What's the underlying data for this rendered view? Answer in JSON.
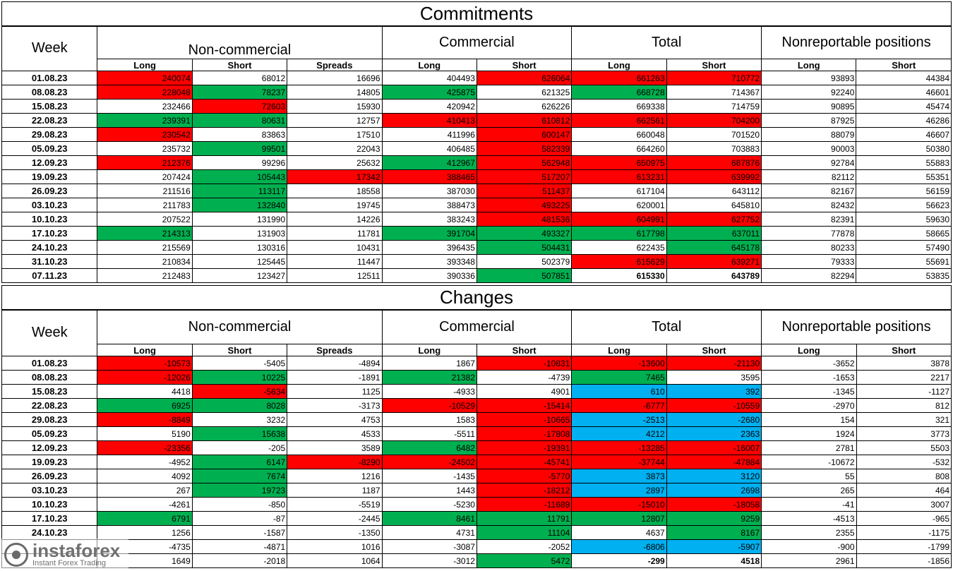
{
  "commitments": {
    "title": "Commitments",
    "week_header": "Week",
    "groups": [
      "Non-commercial",
      "Commercial",
      "Total",
      "Nonreportable positions"
    ],
    "sub_headers": [
      "Long",
      "Short",
      "Spreads",
      "Long",
      "Short",
      "Long",
      "Short",
      "Long",
      "Short"
    ],
    "rows": [
      {
        "week": "01.08.23",
        "values": [
          "240074",
          "68012",
          "16696",
          "404493",
          "626064",
          "661263",
          "710772",
          "93893",
          "44384"
        ],
        "colors": [
          "red",
          "",
          "",
          "",
          "red",
          "red",
          "red",
          "",
          ""
        ]
      },
      {
        "week": "08.08.23",
        "values": [
          "228048",
          "78237",
          "14805",
          "425875",
          "621325",
          "668728",
          "714367",
          "92240",
          "46601"
        ],
        "colors": [
          "red",
          "green",
          "",
          "green",
          "",
          "green",
          "",
          "",
          ""
        ]
      },
      {
        "week": "15.08.23",
        "values": [
          "232466",
          "72603",
          "15930",
          "420942",
          "626226",
          "669338",
          "714759",
          "90895",
          "45474"
        ],
        "colors": [
          "",
          "red",
          "",
          "",
          "",
          "",
          "",
          "",
          ""
        ]
      },
      {
        "week": "22.08.23",
        "values": [
          "239391",
          "80631",
          "12757",
          "410413",
          "610812",
          "662561",
          "704200",
          "87925",
          "46286"
        ],
        "colors": [
          "green",
          "green",
          "",
          "red",
          "red",
          "red",
          "red",
          "",
          ""
        ]
      },
      {
        "week": "29.08.23",
        "values": [
          "230542",
          "83863",
          "17510",
          "411996",
          "600147",
          "660048",
          "701520",
          "88079",
          "46607"
        ],
        "colors": [
          "red",
          "",
          "",
          "",
          "red",
          "",
          "",
          "",
          ""
        ]
      },
      {
        "week": "05.09.23",
        "values": [
          "235732",
          "99501",
          "22043",
          "406485",
          "582339",
          "664260",
          "703883",
          "90003",
          "50380"
        ],
        "colors": [
          "",
          "green",
          "",
          "",
          "red",
          "",
          "",
          "",
          ""
        ]
      },
      {
        "week": "12.09.23",
        "values": [
          "212376",
          "99296",
          "25632",
          "412967",
          "562948",
          "650975",
          "687876",
          "92784",
          "55883"
        ],
        "colors": [
          "red",
          "",
          "",
          "green",
          "red",
          "red",
          "red",
          "",
          ""
        ]
      },
      {
        "week": "19.09.23",
        "values": [
          "207424",
          "105443",
          "17342",
          "388465",
          "517207",
          "613231",
          "639992",
          "82112",
          "55351"
        ],
        "colors": [
          "",
          "green",
          "red",
          "red",
          "red",
          "red",
          "red",
          "",
          ""
        ]
      },
      {
        "week": "26.09.23",
        "values": [
          "211516",
          "113117",
          "18558",
          "387030",
          "511437",
          "617104",
          "643112",
          "82167",
          "56159"
        ],
        "colors": [
          "",
          "green",
          "",
          "",
          "red",
          "",
          "",
          "",
          ""
        ]
      },
      {
        "week": "03.10.23",
        "values": [
          "211783",
          "132840",
          "19745",
          "388473",
          "493225",
          "620001",
          "645810",
          "82432",
          "56623"
        ],
        "colors": [
          "",
          "green",
          "",
          "",
          "red",
          "",
          "",
          "",
          ""
        ]
      },
      {
        "week": "10.10.23",
        "values": [
          "207522",
          "131990",
          "14226",
          "383243",
          "481536",
          "604991",
          "627752",
          "82391",
          "59630"
        ],
        "colors": [
          "",
          "",
          "",
          "",
          "red",
          "red",
          "red",
          "",
          ""
        ]
      },
      {
        "week": "17.10.23",
        "values": [
          "214313",
          "131903",
          "11781",
          "391704",
          "493327",
          "617798",
          "637011",
          "77878",
          "58665"
        ],
        "colors": [
          "green",
          "",
          "",
          "green",
          "green",
          "green",
          "green",
          "",
          ""
        ]
      },
      {
        "week": "24.10.23",
        "values": [
          "215569",
          "130316",
          "10431",
          "396435",
          "504431",
          "622435",
          "645178",
          "80233",
          "57490"
        ],
        "colors": [
          "",
          "",
          "",
          "",
          "green",
          "",
          "green",
          "",
          ""
        ]
      },
      {
        "week": "31.10.23",
        "values": [
          "210834",
          "125445",
          "11447",
          "393348",
          "502379",
          "615629",
          "639271",
          "79333",
          "55691"
        ],
        "colors": [
          "",
          "",
          "",
          "",
          "",
          "red",
          "red",
          "",
          ""
        ]
      },
      {
        "week": "07.11.23",
        "values": [
          "212483",
          "123427",
          "12511",
          "390336",
          "507851",
          "615330",
          "643789",
          "82294",
          "53835"
        ],
        "colors": [
          "",
          "",
          "",
          "",
          "green",
          "",
          "",
          "",
          ""
        ],
        "bold": [
          false,
          false,
          false,
          false,
          false,
          true,
          true,
          false,
          false
        ]
      }
    ]
  },
  "changes": {
    "title": "Changes",
    "week_header": "Week",
    "groups": [
      "Non-commercial",
      "Commercial",
      "Total",
      "Nonreportable positions"
    ],
    "sub_headers": [
      "Long",
      "Short",
      "Spreads",
      "Long",
      "Short",
      "Long",
      "Short",
      "Long",
      "Short"
    ],
    "rows": [
      {
        "week": "01.08.23",
        "values": [
          "-10573",
          "-5405",
          "-4894",
          "1867",
          "-10831",
          "-13600",
          "-21130",
          "-3652",
          "3878"
        ],
        "colors": [
          "red",
          "",
          "",
          "",
          "red",
          "red",
          "red",
          "",
          ""
        ]
      },
      {
        "week": "08.08.23",
        "values": [
          "-12026",
          "10225",
          "-1891",
          "21382",
          "-4739",
          "7465",
          "3595",
          "-1653",
          "2217"
        ],
        "colors": [
          "red",
          "green",
          "",
          "green",
          "",
          "green",
          "",
          "",
          ""
        ]
      },
      {
        "week": "15.08.23",
        "values": [
          "4418",
          "-5634",
          "1125",
          "-4933",
          "4901",
          "610",
          "392",
          "-1345",
          "-1127"
        ],
        "colors": [
          "",
          "red",
          "",
          "",
          "",
          "blue",
          "blue",
          "",
          ""
        ]
      },
      {
        "week": "22.08.23",
        "values": [
          "6925",
          "8028",
          "-3173",
          "-10529",
          "-15414",
          "-6777",
          "-10559",
          "-2970",
          "812"
        ],
        "colors": [
          "green",
          "green",
          "",
          "red",
          "red",
          "red",
          "red",
          "",
          ""
        ]
      },
      {
        "week": "29.08.23",
        "values": [
          "-8849",
          "3232",
          "4753",
          "1583",
          "-10665",
          "-2513",
          "-2680",
          "154",
          "321"
        ],
        "colors": [
          "red",
          "",
          "",
          "",
          "red",
          "blue",
          "blue",
          "",
          ""
        ]
      },
      {
        "week": "05.09.23",
        "values": [
          "5190",
          "15638",
          "4533",
          "-5511",
          "-17808",
          "4212",
          "2363",
          "1924",
          "3773"
        ],
        "colors": [
          "",
          "green",
          "",
          "",
          "red",
          "blue",
          "blue",
          "",
          ""
        ]
      },
      {
        "week": "12.09.23",
        "values": [
          "-23356",
          "-205",
          "3589",
          "6482",
          "-19391",
          "-13285",
          "-16007",
          "2781",
          "5503"
        ],
        "colors": [
          "red",
          "",
          "",
          "green",
          "red",
          "red",
          "red",
          "",
          ""
        ]
      },
      {
        "week": "19.09.23",
        "values": [
          "-4952",
          "6147",
          "-8290",
          "-24502",
          "-45741",
          "-37744",
          "-47884",
          "-10672",
          "-532"
        ],
        "colors": [
          "",
          "green",
          "red",
          "red",
          "red",
          "red",
          "red",
          "",
          ""
        ]
      },
      {
        "week": "26.09.23",
        "values": [
          "4092",
          "7674",
          "1216",
          "-1435",
          "-5770",
          "3873",
          "3120",
          "55",
          "808"
        ],
        "colors": [
          "",
          "green",
          "",
          "",
          "red",
          "blue",
          "blue",
          "",
          ""
        ]
      },
      {
        "week": "03.10.23",
        "values": [
          "267",
          "19723",
          "1187",
          "1443",
          "-18212",
          "2897",
          "2698",
          "265",
          "464"
        ],
        "colors": [
          "",
          "green",
          "",
          "",
          "red",
          "blue",
          "blue",
          "",
          ""
        ]
      },
      {
        "week": "10.10.23",
        "values": [
          "-4261",
          "-850",
          "-5519",
          "-5230",
          "-11689",
          "-15010",
          "-18058",
          "-41",
          "3007"
        ],
        "colors": [
          "",
          "",
          "",
          "",
          "red",
          "red",
          "red",
          "",
          ""
        ]
      },
      {
        "week": "17.10.23",
        "values": [
          "6791",
          "-87",
          "-2445",
          "8461",
          "11791",
          "12807",
          "9259",
          "-4513",
          "-965"
        ],
        "colors": [
          "green",
          "",
          "",
          "green",
          "green",
          "green",
          "green",
          "",
          ""
        ]
      },
      {
        "week": "24.10.23",
        "values": [
          "1256",
          "-1587",
          "-1350",
          "4731",
          "11104",
          "4637",
          "8167",
          "2355",
          "-1175"
        ],
        "colors": [
          "",
          "",
          "",
          "",
          "green",
          "",
          "green",
          "",
          ""
        ]
      },
      {
        "week": "",
        "values": [
          "-4735",
          "-4871",
          "1016",
          "-3087",
          "-2052",
          "-6806",
          "-5907",
          "-900",
          "-1799"
        ],
        "colors": [
          "",
          "",
          "",
          "",
          "",
          "blue",
          "blue",
          "",
          ""
        ]
      },
      {
        "week": "",
        "values": [
          "1649",
          "-2018",
          "1064",
          "-3012",
          "5472",
          "-299",
          "4518",
          "2961",
          "-1856"
        ],
        "colors": [
          "",
          "",
          "",
          "",
          "green",
          "",
          "",
          "",
          ""
        ],
        "bold": [
          false,
          false,
          false,
          false,
          false,
          true,
          true,
          false,
          false
        ]
      }
    ]
  },
  "colors": {
    "red": "#ff0000",
    "green": "#00b050",
    "blue": "#00b0f0"
  },
  "watermark": {
    "brand": "instaforex",
    "tagline": "Instant Forex Trading"
  }
}
